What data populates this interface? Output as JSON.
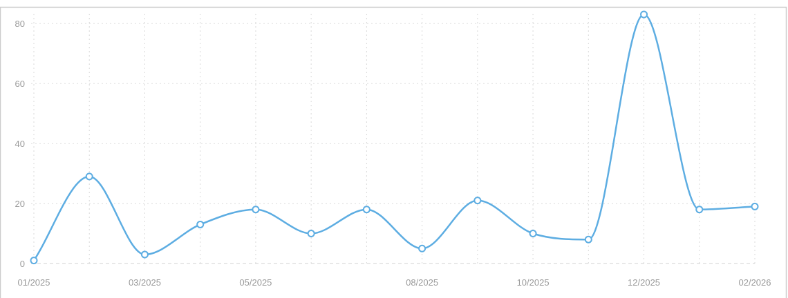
{
  "chart_data": {
    "type": "line",
    "title": "",
    "xlabel": "",
    "ylabel": "",
    "ylim": [
      0,
      80
    ],
    "y_ticks": [
      0,
      20,
      40,
      60,
      80
    ],
    "x": [
      "01/2025",
      "02/2025",
      "03/2025",
      "04/2025",
      "05/2025",
      "06/2025",
      "07/2025",
      "08/2025",
      "09/2025",
      "10/2025",
      "11/2025",
      "12/2025",
      "01/2026",
      "02/2026"
    ],
    "x_tick_labels": [
      {
        "index": 0,
        "label": "01/2025"
      },
      {
        "index": 2,
        "label": "03/2025"
      },
      {
        "index": 4,
        "label": "05/2025"
      },
      {
        "index": 7,
        "label": "08/2025"
      },
      {
        "index": 9,
        "label": "10/2025"
      },
      {
        "index": 11,
        "label": "12/2025"
      },
      {
        "index": 13,
        "label": "02/2026"
      }
    ],
    "series": [
      {
        "values": [
          1,
          29,
          3,
          13,
          18,
          10,
          18,
          5,
          21,
          10,
          8,
          83,
          18,
          19
        ]
      }
    ],
    "grid": true,
    "line_color": "#5dade2",
    "grid_color": "#d9d9d9",
    "axis_color": "#cccccc",
    "marker_fill": "#ffffff"
  }
}
